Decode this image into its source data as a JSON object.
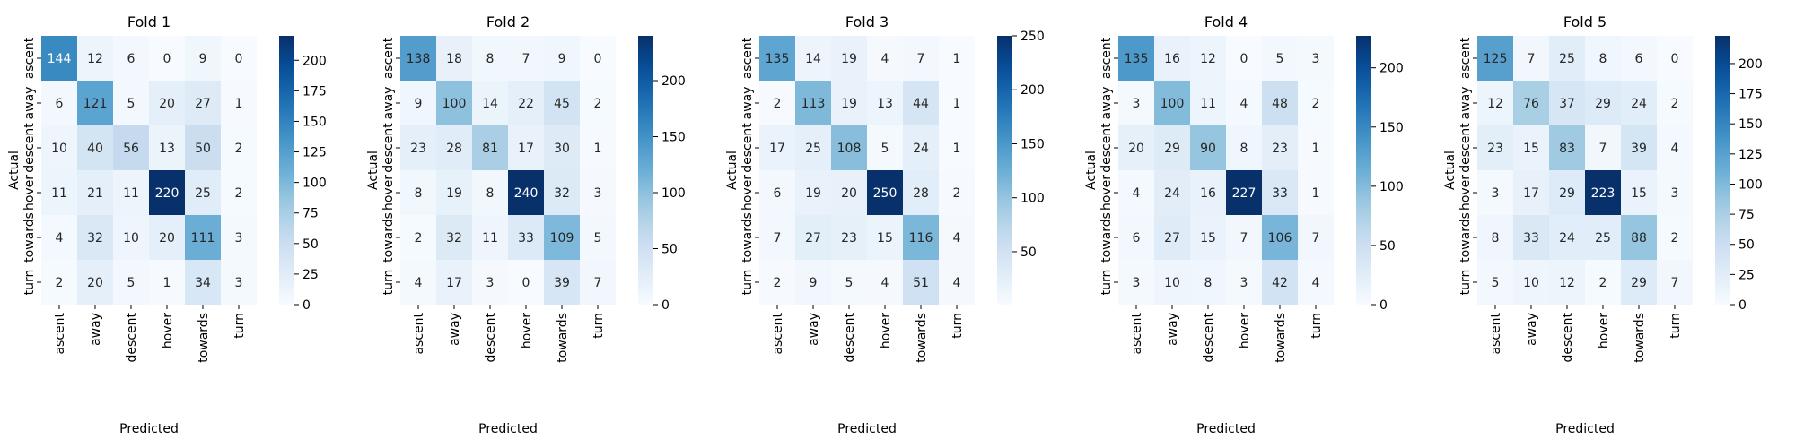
{
  "chart_data": [
    {
      "type": "heatmap",
      "title": "Fold 1",
      "xlabel": "Predicted",
      "ylabel": "Actual",
      "x_categories": [
        "ascent",
        "away",
        "descent",
        "hover",
        "towards",
        "turn"
      ],
      "y_categories": [
        "ascent",
        "away",
        "descent",
        "hover",
        "towards",
        "turn"
      ],
      "values": [
        [
          144,
          12,
          6,
          0,
          9,
          0
        ],
        [
          6,
          121,
          5,
          20,
          27,
          1
        ],
        [
          10,
          40,
          56,
          13,
          50,
          2
        ],
        [
          11,
          21,
          11,
          220,
          25,
          2
        ],
        [
          4,
          32,
          10,
          20,
          111,
          3
        ],
        [
          2,
          20,
          5,
          1,
          34,
          3
        ]
      ],
      "colorbar": {
        "min": 0,
        "max": 220,
        "ticks": [
          0,
          25,
          50,
          75,
          100,
          125,
          150,
          175,
          200
        ]
      }
    },
    {
      "type": "heatmap",
      "title": "Fold 2",
      "xlabel": "Predicted",
      "ylabel": "Actual",
      "x_categories": [
        "ascent",
        "away",
        "descent",
        "hover",
        "towards",
        "turn"
      ],
      "y_categories": [
        "ascent",
        "away",
        "descent",
        "hover",
        "towards",
        "turn"
      ],
      "values": [
        [
          138,
          18,
          8,
          7,
          9,
          0
        ],
        [
          9,
          100,
          14,
          22,
          45,
          2
        ],
        [
          23,
          28,
          81,
          17,
          30,
          1
        ],
        [
          8,
          19,
          8,
          240,
          32,
          3
        ],
        [
          2,
          32,
          11,
          33,
          109,
          5
        ],
        [
          4,
          17,
          3,
          0,
          39,
          7
        ]
      ],
      "colorbar": {
        "min": 0,
        "max": 240,
        "ticks": [
          0,
          50,
          100,
          150,
          200
        ]
      }
    },
    {
      "type": "heatmap",
      "title": "Fold 3",
      "xlabel": "Predicted",
      "ylabel": "Actual",
      "x_categories": [
        "ascent",
        "away",
        "descent",
        "hover",
        "towards",
        "turn"
      ],
      "y_categories": [
        "ascent",
        "away",
        "descent",
        "hover",
        "towards",
        "turn"
      ],
      "values": [
        [
          135,
          14,
          19,
          4,
          7,
          1
        ],
        [
          2,
          113,
          19,
          13,
          44,
          1
        ],
        [
          17,
          25,
          108,
          5,
          24,
          1
        ],
        [
          6,
          19,
          20,
          250,
          28,
          2
        ],
        [
          7,
          27,
          23,
          15,
          116,
          4
        ],
        [
          2,
          9,
          5,
          4,
          51,
          4
        ]
      ],
      "colorbar": {
        "min": 1,
        "max": 250,
        "ticks": [
          50,
          100,
          150,
          200,
          250
        ]
      }
    },
    {
      "type": "heatmap",
      "title": "Fold 4",
      "xlabel": "Predicted",
      "ylabel": "Actual",
      "x_categories": [
        "ascent",
        "away",
        "descent",
        "hover",
        "towards",
        "turn"
      ],
      "y_categories": [
        "ascent",
        "away",
        "descent",
        "hover",
        "towards",
        "turn"
      ],
      "values": [
        [
          135,
          16,
          12,
          0,
          5,
          3
        ],
        [
          3,
          100,
          11,
          4,
          48,
          2
        ],
        [
          20,
          29,
          90,
          8,
          23,
          1
        ],
        [
          4,
          24,
          16,
          227,
          33,
          1
        ],
        [
          6,
          27,
          15,
          7,
          106,
          7
        ],
        [
          3,
          10,
          8,
          3,
          42,
          4
        ]
      ],
      "colorbar": {
        "min": 0,
        "max": 227,
        "ticks": [
          0,
          50,
          100,
          150,
          200
        ]
      }
    },
    {
      "type": "heatmap",
      "title": "Fold 5",
      "xlabel": "Predicted",
      "ylabel": "Actual",
      "x_categories": [
        "ascent",
        "away",
        "descent",
        "hover",
        "towards",
        "turn"
      ],
      "y_categories": [
        "ascent",
        "away",
        "descent",
        "hover",
        "towards",
        "turn"
      ],
      "values": [
        [
          125,
          7,
          25,
          8,
          6,
          0
        ],
        [
          12,
          76,
          37,
          29,
          24,
          2
        ],
        [
          23,
          15,
          83,
          7,
          39,
          4
        ],
        [
          3,
          17,
          29,
          223,
          15,
          3
        ],
        [
          8,
          33,
          24,
          25,
          88,
          2
        ],
        [
          5,
          10,
          12,
          2,
          29,
          7
        ]
      ],
      "colorbar": {
        "min": 0,
        "max": 223,
        "ticks": [
          0,
          25,
          50,
          75,
          100,
          125,
          150,
          175,
          200
        ]
      }
    }
  ]
}
